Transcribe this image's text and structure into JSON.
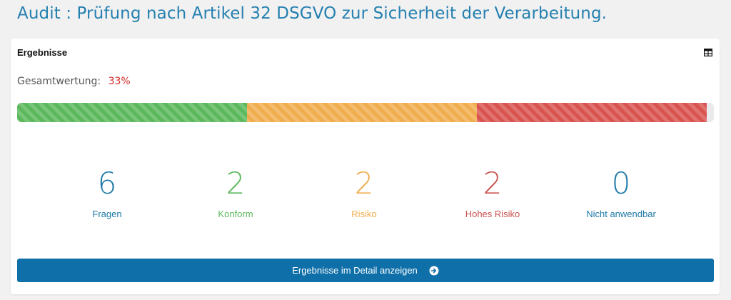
{
  "page": {
    "title": "Audit : Prüfung nach Artikel 32 DSGVO zur Sicherheit der Verarbeitung."
  },
  "card": {
    "title": "Ergebnisse",
    "icon": "table-icon",
    "score_label": "Gesamtwertung:",
    "score_value": "33%",
    "progress": [
      {
        "name": "Konform",
        "fraction": 0.3333,
        "color": "#5cb85c"
      },
      {
        "name": "Risiko",
        "fraction": 0.3333,
        "color": "#f0ad4e"
      },
      {
        "name": "Hohes Risiko",
        "fraction": 0.3333,
        "color": "#d9534f"
      }
    ],
    "stats": [
      {
        "number": "6",
        "label": "Fragen",
        "color": "#1f7aa8"
      },
      {
        "number": "2",
        "label": "Konform",
        "color": "#5cb85c"
      },
      {
        "number": "2",
        "label": "Risiko",
        "color": "#f0ad4e"
      },
      {
        "number": "2",
        "label": "Hohes Risiko",
        "color": "#c9534f"
      },
      {
        "number": "0",
        "label": "Nicht anwendbar",
        "color": "#1f7aa8"
      }
    ],
    "button_label": "Ergebnisse im Detail anzeigen",
    "button_icon": "arrow-right-circle-icon"
  }
}
